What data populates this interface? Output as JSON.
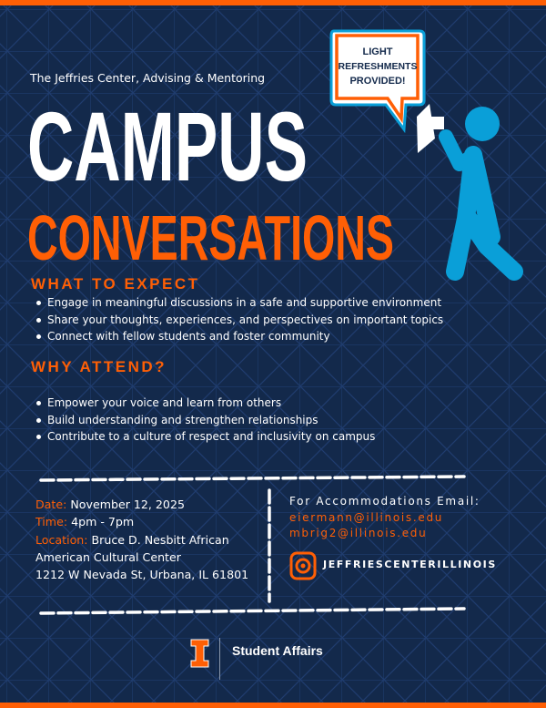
{
  "organizer": "The Jeffries Center, Advising & Mentoring",
  "title_line1": "CAMPUS",
  "title_line2": "CONVERSATIONS",
  "bubble": {
    "line1": "LIGHT",
    "line2": "REFRESHMENTS",
    "line3": "PROVIDED!"
  },
  "expect": {
    "heading": "WHAT TO EXPECT",
    "items": [
      "Engage in meaningful discussions in a safe and supportive environment",
      "Share your thoughts, experiences, and perspectives on important topics",
      "Connect with fellow students and foster community"
    ]
  },
  "attend": {
    "heading": "WHY ATTEND?",
    "items": [
      "Empower your voice and learn from others",
      "Build understanding and strengthen relationships",
      "Contribute to a culture of respect and inclusivity on campus"
    ]
  },
  "details": {
    "date_label": "Date:",
    "date": "November 12, 2025",
    "time_label": "Time:",
    "time": "4pm - 7pm",
    "location_label": "Location:",
    "location_line1": "Bruce D. Nesbitt African",
    "location_line2": "American Cultural Center",
    "address": "1212 W Nevada St, Urbana, IL 61801"
  },
  "contact": {
    "heading": "For Accommodations Email:",
    "emails": [
      "eiermann@illinois.edu",
      "mbrig2@illinois.edu"
    ],
    "instagram": "JEFFRIESCENTERILLINOIS"
  },
  "footer": {
    "logo_letter": "I",
    "unit": "Student Affairs"
  },
  "colors": {
    "navy": "#13294b",
    "orange": "#ff5f05",
    "blue": "#0a9fd8"
  }
}
